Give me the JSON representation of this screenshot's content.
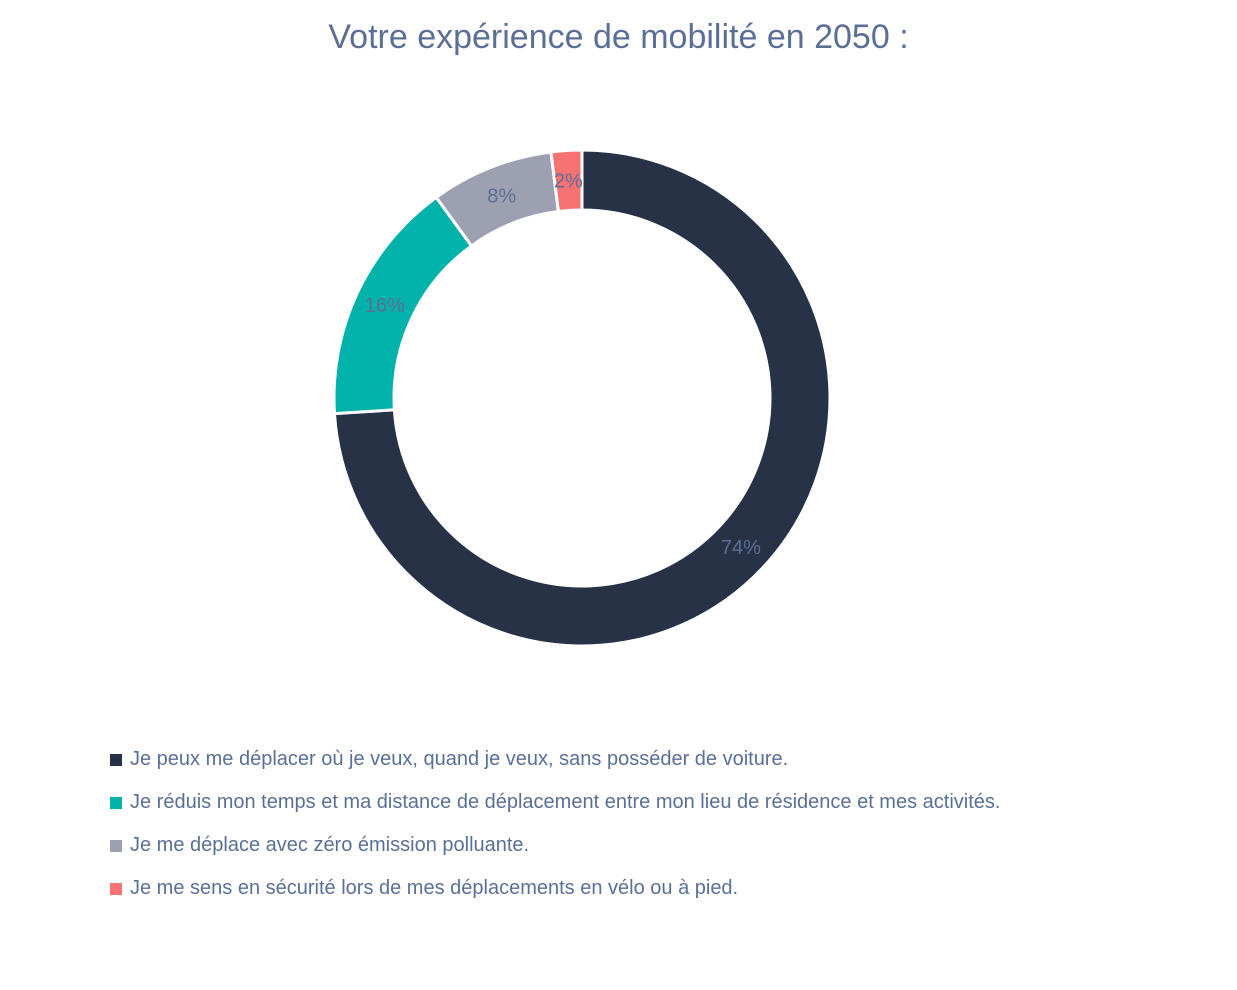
{
  "chart_data": {
    "type": "pie",
    "style": "donut",
    "title": "Votre expérience de mobilité en 2050 :",
    "legend_position": "bottom",
    "slices": [
      {
        "label": "Je peux me déplacer où je veux, quand je veux, sans posséder de voiture.",
        "value": 74,
        "value_label": "74%",
        "color": "#283247"
      },
      {
        "label": "Je réduis mon temps et ma distance de déplacement entre mon lieu de résidence et mes activités.",
        "value": 16,
        "value_label": "16%",
        "color": "#00b2aa"
      },
      {
        "label": "Je me déplace avec zéro émission polluante.",
        "value": 8,
        "value_label": "8%",
        "color": "#9ca0b1"
      },
      {
        "label": "Je me sens en sécurité lors de mes déplacements en vélo ou à pied.",
        "value": 2,
        "value_label": "2%",
        "color": "#f77273"
      }
    ]
  }
}
